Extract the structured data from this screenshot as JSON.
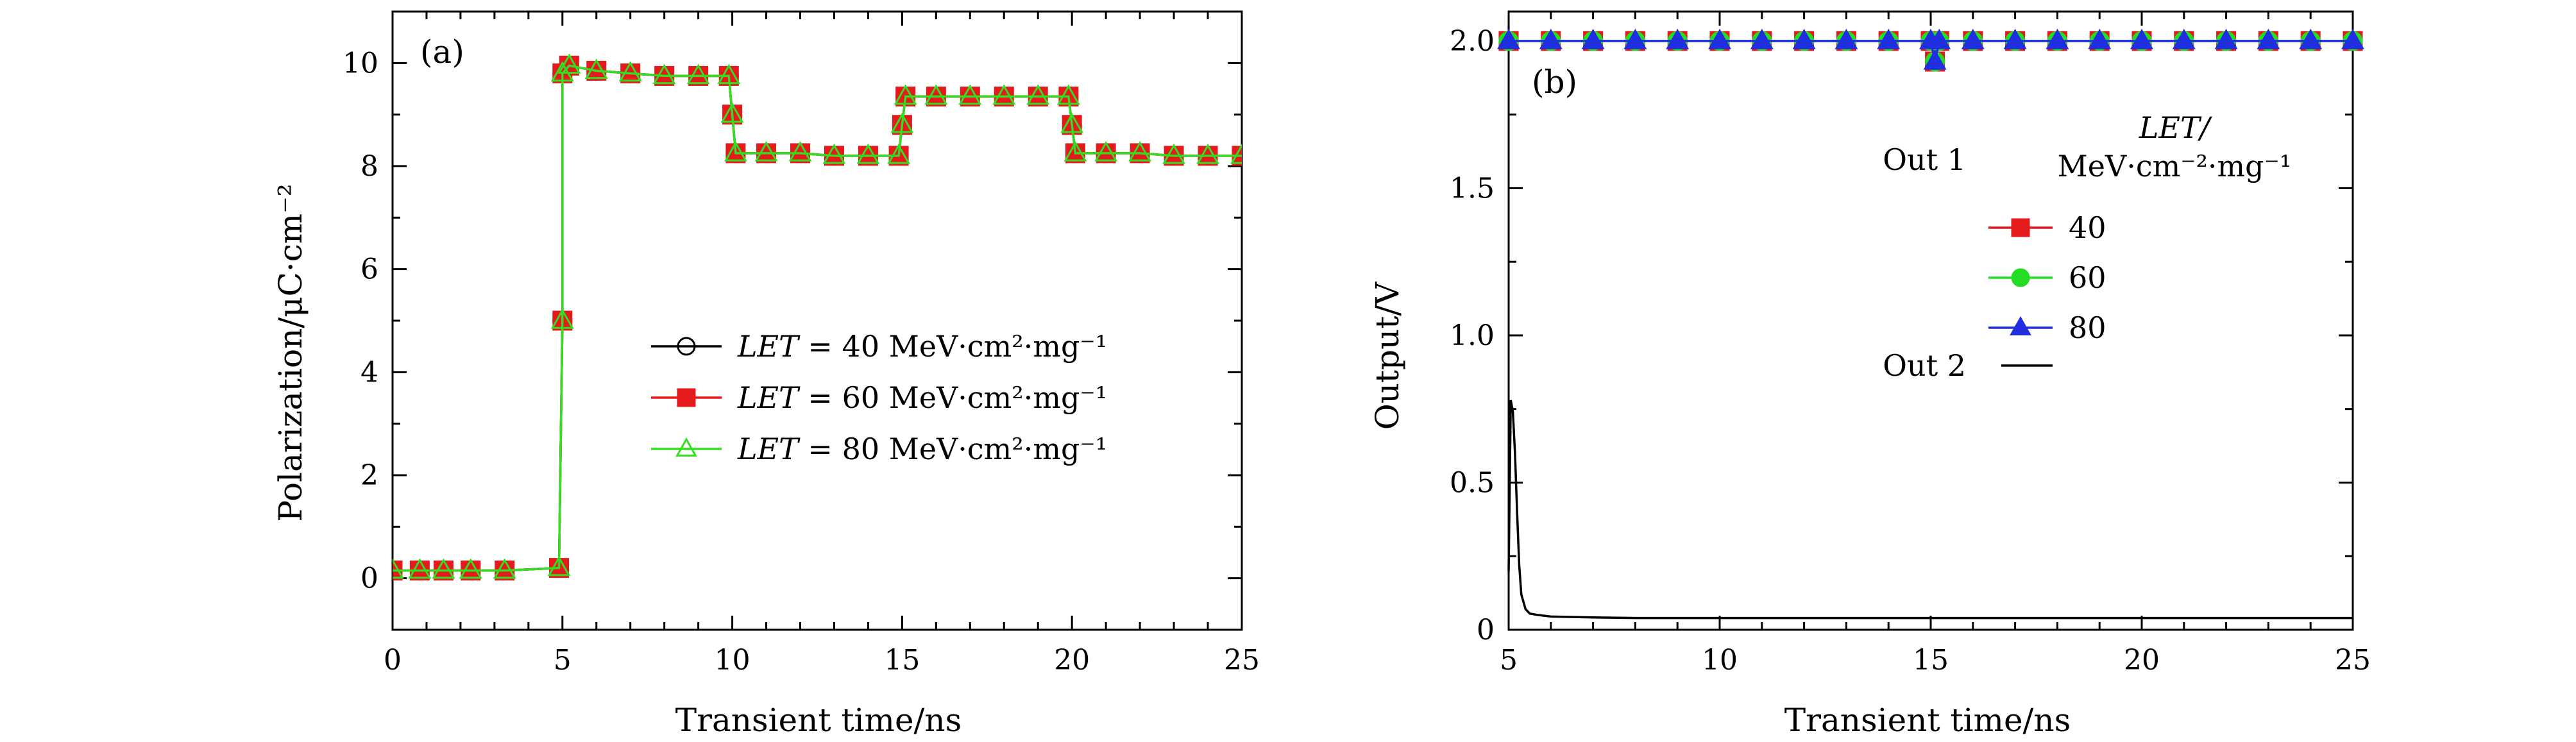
{
  "chart_data": [
    {
      "type": "line",
      "panel": "(a)",
      "xlabel": "Transient time/ns",
      "ylabel": "Polarization/μC·cm⁻²",
      "xlim": [
        0,
        25
      ],
      "ylim": [
        -1,
        11
      ],
      "xticks": [
        0,
        5,
        10,
        15,
        20,
        25
      ],
      "yticks": [
        0,
        2,
        4,
        6,
        8,
        10
      ],
      "legend_position": "center-right",
      "legend_entries": [
        {
          "prefix": "LET",
          "value": "= 40",
          "unit": "MeV·cm²·mg⁻¹"
        },
        {
          "prefix": "LET",
          "value": "= 60",
          "unit": "MeV·cm²·mg⁻¹"
        },
        {
          "prefix": "LET",
          "value": "= 80",
          "unit": "MeV·cm²·mg⁻¹"
        }
      ],
      "series": [
        {
          "name": "LET = 40",
          "marker": "circle-open",
          "color": "#000000",
          "x": [
            0,
            0.8,
            1.5,
            2.3,
            3.3,
            4.9,
            5.0,
            5.0,
            5.2,
            6,
            7,
            8,
            9,
            9.9,
            10.0,
            10.1,
            11,
            12,
            13,
            14,
            14.9,
            15.0,
            15.1,
            16,
            17,
            18,
            19,
            19.9,
            20.0,
            20.1,
            21,
            22,
            23,
            24,
            25
          ],
          "y": [
            0.15,
            0.15,
            0.15,
            0.15,
            0.15,
            0.2,
            5.0,
            9.8,
            9.95,
            9.85,
            9.8,
            9.75,
            9.75,
            9.75,
            9.0,
            8.25,
            8.25,
            8.25,
            8.2,
            8.2,
            8.2,
            8.8,
            9.35,
            9.35,
            9.35,
            9.35,
            9.35,
            9.35,
            8.8,
            8.25,
            8.25,
            8.25,
            8.2,
            8.2,
            8.2
          ]
        },
        {
          "name": "LET = 60",
          "marker": "square-filled",
          "color": "#e41a1c",
          "x": [
            0,
            0.8,
            1.5,
            2.3,
            3.3,
            4.9,
            5.0,
            5.0,
            5.2,
            6,
            7,
            8,
            9,
            9.9,
            10.0,
            10.1,
            11,
            12,
            13,
            14,
            14.9,
            15.0,
            15.1,
            16,
            17,
            18,
            19,
            19.9,
            20.0,
            20.1,
            21,
            22,
            23,
            24,
            25
          ],
          "y": [
            0.15,
            0.15,
            0.15,
            0.15,
            0.15,
            0.2,
            5.0,
            9.8,
            9.95,
            9.85,
            9.8,
            9.75,
            9.75,
            9.75,
            9.0,
            8.25,
            8.25,
            8.25,
            8.2,
            8.2,
            8.2,
            8.8,
            9.35,
            9.35,
            9.35,
            9.35,
            9.35,
            9.35,
            8.8,
            8.25,
            8.25,
            8.25,
            8.2,
            8.2,
            8.2
          ]
        },
        {
          "name": "LET = 80",
          "marker": "triangle-open",
          "color": "#33dd22",
          "x": [
            0,
            0.8,
            1.5,
            2.3,
            3.3,
            4.9,
            5.0,
            5.0,
            5.2,
            6,
            7,
            8,
            9,
            9.9,
            10.0,
            10.1,
            11,
            12,
            13,
            14,
            14.9,
            15.0,
            15.1,
            16,
            17,
            18,
            19,
            19.9,
            20.0,
            20.1,
            21,
            22,
            23,
            24,
            25
          ],
          "y": [
            0.15,
            0.15,
            0.15,
            0.15,
            0.15,
            0.2,
            5.0,
            9.8,
            9.95,
            9.85,
            9.8,
            9.75,
            9.75,
            9.75,
            9.0,
            8.25,
            8.25,
            8.25,
            8.2,
            8.2,
            8.2,
            8.8,
            9.35,
            9.35,
            9.35,
            9.35,
            9.35,
            9.35,
            8.8,
            8.25,
            8.25,
            8.25,
            8.2,
            8.2,
            8.2
          ]
        }
      ]
    },
    {
      "type": "line",
      "panel": "(b)",
      "xlabel": "Transient time/ns",
      "ylabel": "Output/V",
      "xlim": [
        5,
        25
      ],
      "ylim": [
        0,
        2.1
      ],
      "xticks": [
        5,
        10,
        15,
        20,
        25
      ],
      "yticks": [
        0,
        0.5,
        1.0,
        1.5,
        2.0
      ],
      "ytick_labels": [
        "0",
        "0.5",
        "1.0",
        "1.5",
        "2.0"
      ],
      "legend_position": "upper-right",
      "legend_header": "LET/",
      "legend_header_unit": "MeV·cm⁻²·mg⁻¹",
      "legend_group_out1": "Out 1",
      "legend_group_out2": "Out 2",
      "legend_entries": [
        "40",
        "60",
        "80"
      ],
      "series": [
        {
          "name": "40",
          "group": "Out 1",
          "marker": "square-filled",
          "color": "#e41a1c",
          "x": [
            5,
            6,
            7,
            8,
            9,
            10,
            11,
            12,
            13,
            14,
            15,
            15.1,
            15.2,
            16,
            17,
            18,
            19,
            20,
            21,
            22,
            23,
            24,
            25
          ],
          "y": [
            2.0,
            2.0,
            2.0,
            2.0,
            2.0,
            2.0,
            2.0,
            2.0,
            2.0,
            2.0,
            2.0,
            1.93,
            2.0,
            2.0,
            2.0,
            2.0,
            2.0,
            2.0,
            2.0,
            2.0,
            2.0,
            2.0,
            2.0
          ]
        },
        {
          "name": "60",
          "group": "Out 1",
          "marker": "circle-filled",
          "color": "#22dd22",
          "x": [
            5,
            6,
            7,
            8,
            9,
            10,
            11,
            12,
            13,
            14,
            15,
            15.1,
            15.2,
            16,
            17,
            18,
            19,
            20,
            21,
            22,
            23,
            24,
            25
          ],
          "y": [
            2.0,
            2.0,
            2.0,
            2.0,
            2.0,
            2.0,
            2.0,
            2.0,
            2.0,
            2.0,
            2.0,
            1.93,
            2.0,
            2.0,
            2.0,
            2.0,
            2.0,
            2.0,
            2.0,
            2.0,
            2.0,
            2.0,
            2.0
          ]
        },
        {
          "name": "80",
          "group": "Out 1",
          "marker": "triangle-filled",
          "color": "#1f2fe0",
          "x": [
            5,
            6,
            7,
            8,
            9,
            10,
            11,
            12,
            13,
            14,
            15,
            15.1,
            15.2,
            16,
            17,
            18,
            19,
            20,
            21,
            22,
            23,
            24,
            25
          ],
          "y": [
            2.0,
            2.0,
            2.0,
            2.0,
            2.0,
            2.0,
            2.0,
            2.0,
            2.0,
            2.0,
            2.0,
            1.93,
            2.0,
            2.0,
            2.0,
            2.0,
            2.0,
            2.0,
            2.0,
            2.0,
            2.0,
            2.0,
            2.0
          ]
        },
        {
          "name": "Out 2",
          "group": "Out 2",
          "marker": "none",
          "color": "#000000",
          "x": [
            5.0,
            5.05,
            5.1,
            5.15,
            5.2,
            5.25,
            5.3,
            5.4,
            5.5,
            5.7,
            6,
            7,
            8,
            10,
            15,
            20,
            25
          ],
          "y": [
            0.2,
            0.78,
            0.74,
            0.6,
            0.4,
            0.22,
            0.12,
            0.07,
            0.055,
            0.05,
            0.045,
            0.042,
            0.04,
            0.04,
            0.04,
            0.04,
            0.04
          ]
        }
      ]
    }
  ]
}
